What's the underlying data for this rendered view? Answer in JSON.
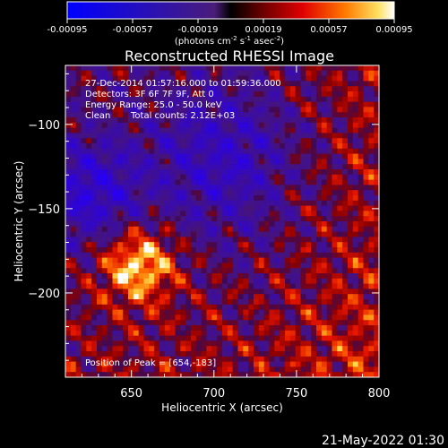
{
  "colorbar": {
    "ticks": [
      "-0.00095",
      "-0.00057",
      "-0.00019",
      "0.00019",
      "0.00057",
      "0.00095"
    ],
    "range": [
      -0.00095,
      0.00095
    ],
    "unit_base": "(photons cm",
    "unit_exp1": "-2",
    "unit_mid": " s",
    "unit_exp2": "-1",
    "unit_mid2": " asec",
    "unit_exp3": "-2",
    "unit_end": ")"
  },
  "chart_data": {
    "type": "heatmap",
    "title": "Reconstructed RHESSI Image",
    "xlabel": "Heliocentric X (arcsec)",
    "ylabel": "Heliocentric Y (arcsec)",
    "xlim": [
      610,
      800
    ],
    "ylim": [
      -250,
      -65
    ],
    "x_ticks": [
      650,
      700,
      750,
      800
    ],
    "y_ticks": [
      -100,
      -150,
      -200
    ],
    "colormap": "red-temperature with blue negatives",
    "peak": [
      654,
      -183
    ],
    "annotations": {
      "time": "27-Dec-2014 01:57:16.000 to 01:59:36.000",
      "detectors": "Detectors: 3F 6F 7F 9F, Att 0",
      "energy": "Energy Range: 25.0 - 50.0 keV",
      "method": "Clean",
      "counts": "Total counts: 2.12E+03",
      "peak_label": "Position of Peak = [654,-183]"
    }
  },
  "footer": {
    "timestamp": "21-May-2022 01:30"
  }
}
